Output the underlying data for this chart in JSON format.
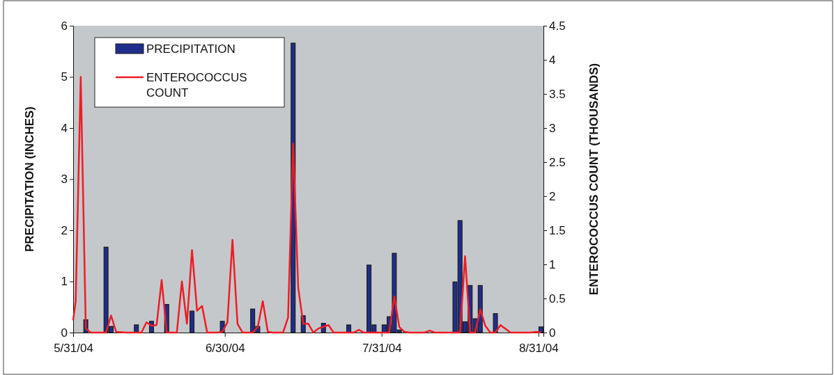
{
  "chart_data": {
    "type": "bar",
    "ylabel": "PRECIPITATION (INCHES)",
    "y2label": "ENTEROCOCCUS COUNT (THOUSANDS)",
    "xlim": [
      "2004-05-31",
      "2004-09-01"
    ],
    "xticks": [
      {
        "value": "2004-05-31",
        "label": "5/31/04"
      },
      {
        "value": "2004-06-30",
        "label": "6/30/04"
      },
      {
        "value": "2004-07-31",
        "label": "7/31/04"
      },
      {
        "value": "2004-08-31",
        "label": "8/31/04"
      }
    ],
    "ylim": [
      0,
      6
    ],
    "yticks": [
      0,
      1,
      2,
      3,
      4,
      5,
      6
    ],
    "y2lim": [
      0,
      4.5
    ],
    "y2ticks": [
      0,
      0.5,
      1,
      1.5,
      2,
      2.5,
      3,
      3.5,
      4,
      4.5
    ],
    "grid": false,
    "legend": "top left",
    "series": [
      {
        "name": "PRECIPITATION",
        "color": "#1f2e8c",
        "x": [
          "2004-06-02T12:00",
          "2004-06-06T12:00",
          "2004-06-07T12:00",
          "2004-06-12T12:00",
          "2004-06-15T12:00",
          "2004-06-18T12:00",
          "2004-06-23T12:00",
          "2004-06-29T12:00",
          "2004-07-05T12:00",
          "2004-07-06T12:00",
          "2004-07-13T12:00",
          "2004-07-15T12:00",
          "2004-07-19T12:00",
          "2004-07-24T12:00",
          "2004-07-28T12:00",
          "2004-07-29T12:00",
          "2004-07-31T12:00",
          "2004-08-01T12:00",
          "2004-08-02T12:00",
          "2004-08-03T12:00",
          "2004-08-14T12:00",
          "2004-08-15T12:00",
          "2004-08-16T12:00",
          "2004-08-17T12:00",
          "2004-08-18T12:00",
          "2004-08-19T12:00",
          "2004-08-22T12:00",
          "2004-08-31T12:00"
        ],
        "values": [
          0.25,
          1.67,
          0.12,
          0.15,
          0.22,
          0.55,
          0.42,
          0.22,
          0.46,
          0.12,
          5.66,
          0.33,
          0.18,
          0.15,
          1.32,
          0.15,
          0.15,
          0.31,
          1.55,
          0.05,
          0.99,
          2.19,
          0.21,
          0.92,
          0.27,
          0.92,
          0.37,
          0.11
        ]
      },
      {
        "name": "ENTEROCOCCUS COUNT",
        "type": "line",
        "axis": "y2",
        "color": "#ee1c25",
        "marker": "none",
        "line_style": "solid",
        "x": [
          "2004-05-31T00:00",
          "2004-05-31T12:00",
          "2004-06-01T12:00",
          "2004-06-02T12:00",
          "2004-06-03T12:00",
          "2004-06-06T12:00",
          "2004-06-07T12:00",
          "2004-06-08T12:00",
          "2004-06-10T12:00",
          "2004-06-13T12:00",
          "2004-06-14T12:00",
          "2004-06-15T12:00",
          "2004-06-16T12:00",
          "2004-06-17T12:00",
          "2004-06-18T12:00",
          "2004-06-20T12:00",
          "2004-06-21T12:00",
          "2004-06-22T12:00",
          "2004-06-23T12:00",
          "2004-06-24T12:00",
          "2004-06-25T12:00",
          "2004-06-26T12:00",
          "2004-06-28T12:00",
          "2004-06-29T12:00",
          "2004-06-30T12:00",
          "2004-07-01T12:00",
          "2004-07-02T12:00",
          "2004-07-03T12:00",
          "2004-07-05T12:00",
          "2004-07-06T12:00",
          "2004-07-07T12:00",
          "2004-07-08T12:00",
          "2004-07-09T12:00",
          "2004-07-11T12:00",
          "2004-07-12T12:00",
          "2004-07-13T12:00",
          "2004-07-14T12:00",
          "2004-07-15T12:00",
          "2004-07-16T12:00",
          "2004-07-17T12:00",
          "2004-07-18T12:00",
          "2004-07-20T12:00",
          "2004-07-21T12:00",
          "2004-07-25T12:00",
          "2004-07-26T12:00",
          "2004-07-27T12:00",
          "2004-08-01T12:00",
          "2004-08-02T12:00",
          "2004-08-03T12:00",
          "2004-08-04T12:00",
          "2004-08-05T12:00",
          "2004-08-08T12:00",
          "2004-08-09T12:00",
          "2004-08-10T12:00",
          "2004-08-15T12:00",
          "2004-08-16T12:00",
          "2004-08-17T12:00",
          "2004-08-18T12:00",
          "2004-08-19T12:00",
          "2004-08-20T12:00",
          "2004-08-21T12:00",
          "2004-08-22T12:00",
          "2004-08-23T12:00",
          "2004-08-25T12:00",
          "2004-08-29T12:00",
          "2004-08-30T12:00",
          "2004-08-31T12:00"
        ],
        "values": [
          0.18,
          0.46,
          3.75,
          0.06,
          0,
          0,
          0.25,
          0.01,
          0,
          0,
          0.15,
          0.1,
          0.11,
          0.77,
          0,
          0,
          0.75,
          0.13,
          1.21,
          0.32,
          0.39,
          0,
          0,
          0.01,
          0.15,
          1.36,
          0.13,
          0,
          0,
          0.08,
          0.46,
          0.01,
          0,
          0,
          0.22,
          2.77,
          0.66,
          0.13,
          0.13,
          0,
          0.06,
          0.11,
          0,
          0,
          0.04,
          0,
          0,
          0.53,
          0.08,
          0.01,
          0,
          0,
          0.03,
          0,
          0,
          1.12,
          0,
          0,
          0.34,
          0.1,
          0,
          0,
          0.11,
          0,
          0,
          0.01,
          0
        ]
      }
    ]
  }
}
